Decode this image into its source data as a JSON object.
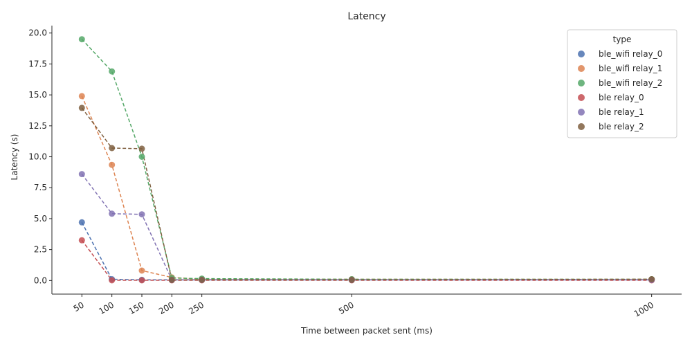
{
  "chart_data": {
    "type": "line",
    "title": "Latency",
    "xlabel": "Time between packet sent (ms)",
    "ylabel": "Latency (s)",
    "x": [
      50,
      100,
      150,
      200,
      250,
      500,
      1000
    ],
    "x_ticks": [
      "50",
      "100",
      "150",
      "200",
      "250",
      "500",
      "1000"
    ],
    "xlim": [
      0,
      1050
    ],
    "ylim": [
      -1.1,
      20.6
    ],
    "y_ticks": [
      "0.0",
      "2.5",
      "5.0",
      "7.5",
      "10.0",
      "12.5",
      "15.0",
      "17.5",
      "20.0"
    ],
    "y_tick_values": [
      0,
      2.5,
      5,
      7.5,
      10,
      12.5,
      15,
      17.5,
      20
    ],
    "grid": false,
    "line_style": "dashed with markers",
    "legend": {
      "title": "type",
      "placement": "top-right"
    },
    "series": [
      {
        "name": "ble_wifi relay_0",
        "color": "#4c72b0",
        "values": [
          4.7,
          0.1,
          0.05,
          0.05,
          0.05,
          0.05,
          0.05
        ]
      },
      {
        "name": "ble_wifi relay_1",
        "color": "#dd8452",
        "values": [
          14.9,
          9.35,
          0.8,
          0.25,
          0.1,
          0.1,
          0.1
        ]
      },
      {
        "name": "ble_wifi relay_2",
        "color": "#55a868",
        "values": [
          19.5,
          16.9,
          10.0,
          0.2,
          0.15,
          0.1,
          0.1
        ]
      },
      {
        "name": "ble relay_0",
        "color": "#c44e52",
        "values": [
          3.25,
          0.02,
          0.02,
          0.02,
          0.02,
          0.02,
          0.02
        ]
      },
      {
        "name": "ble relay_1",
        "color": "#8172b3",
        "values": [
          8.6,
          5.4,
          5.35,
          0.05,
          0.05,
          0.05,
          0.05
        ]
      },
      {
        "name": "ble relay_2",
        "color": "#7f5f3f",
        "values": [
          13.95,
          10.7,
          10.65,
          0.05,
          0.05,
          0.05,
          0.1
        ]
      }
    ]
  }
}
